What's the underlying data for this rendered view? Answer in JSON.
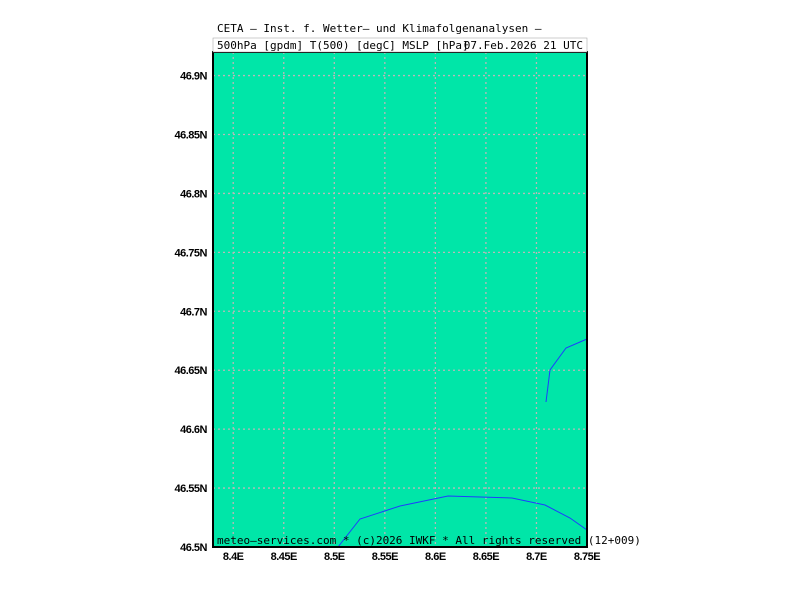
{
  "map": {
    "header": [
      "CETA — Inst. f. Wetter— und Klimafolgenanalysen —",
      "500hPa [gpdm] T(500) [degC] MSLP [hPa]",
      "07.Feb.2026 21 UTC"
    ],
    "footer": "meteo—services.com * (c)2026 IWKF * All rights reserved (12+009)",
    "xlim": [
      8.38,
      8.75
    ],
    "ylim": [
      46.5,
      46.92
    ],
    "xticks": [
      {
        "value": 8.4,
        "label": "8.4E"
      },
      {
        "value": 8.45,
        "label": "8.45E"
      },
      {
        "value": 8.5,
        "label": "8.5E"
      },
      {
        "value": 8.55,
        "label": "8.55E"
      },
      {
        "value": 8.6,
        "label": "8.6E"
      },
      {
        "value": 8.65,
        "label": "8.65E"
      },
      {
        "value": 8.7,
        "label": "8.7E"
      },
      {
        "value": 8.75,
        "label": "8.75E"
      }
    ],
    "yticks": [
      {
        "value": 46.5,
        "label": "46.5N"
      },
      {
        "value": 46.55,
        "label": "46.55N"
      },
      {
        "value": 46.6,
        "label": "46.6N"
      },
      {
        "value": 46.65,
        "label": "46.65N"
      },
      {
        "value": 46.7,
        "label": "46.7N"
      },
      {
        "value": 46.75,
        "label": "46.75N"
      },
      {
        "value": 46.8,
        "label": "46.8N"
      },
      {
        "value": 46.85,
        "label": "46.85N"
      },
      {
        "value": 46.9,
        "label": "46.9N"
      }
    ]
  }
}
